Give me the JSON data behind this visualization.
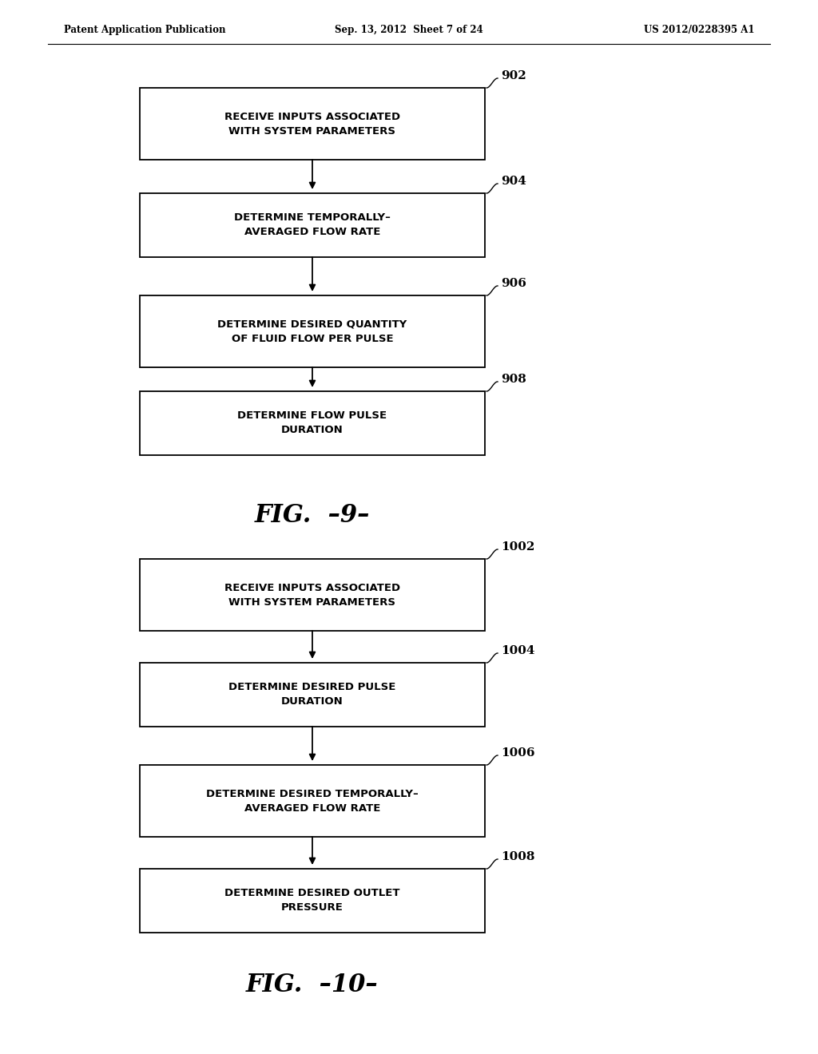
{
  "background_color": "#ffffff",
  "header_left": "Patent Application Publication",
  "header_center": "Sep. 13, 2012  Sheet 7 of 24",
  "header_right": "US 2012/0228395 A1",
  "fig9": {
    "title": "FIG.  –9–",
    "title_plain": "FIG.  -9-",
    "boxes": [
      {
        "id": "902",
        "label": "RECEIVE INPUTS ASSOCIATED\nWITH SYSTEM PARAMETERS"
      },
      {
        "id": "904",
        "label": "DETERMINE TEMPORALLY–\nAVERAGED FLOW RATE"
      },
      {
        "id": "906",
        "label": "DETERMINE DESIRED QUANTITY\nOF FLUID FLOW PER PULSE"
      },
      {
        "id": "908",
        "label": "DETERMINE FLOW PULSE\nDURATION"
      }
    ]
  },
  "fig10": {
    "title_plain": "FIG.  -10-",
    "boxes": [
      {
        "id": "1002",
        "label": "RECEIVE INPUTS ASSOCIATED\nWITH SYSTEM PARAMETERS"
      },
      {
        "id": "1004",
        "label": "DETERMINE DESIRED PULSE\nDURATION"
      },
      {
        "id": "1006",
        "label": "DETERMINE DESIRED TEMPORALLY–\nAVERAGED FLOW RATE"
      },
      {
        "id": "1008",
        "label": "DETERMINE DESIRED OUTLET\nPRESSURE"
      }
    ]
  }
}
